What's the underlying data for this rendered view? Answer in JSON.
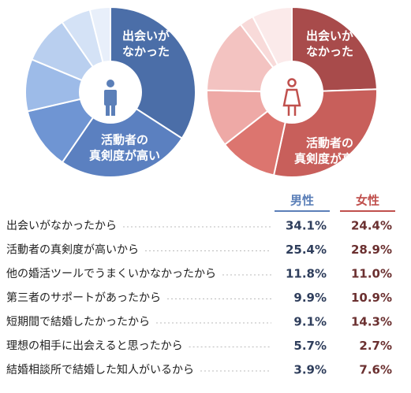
{
  "chart_data": {
    "type": "pie",
    "categories": [
      "出会いがなかったから",
      "活動者の真剣度が高いから",
      "他の婚活ツールでうまくいかなかったから",
      "第三者のサポートがあったから",
      "短期間で結婚したかったから",
      "理想の相手に出会えると思ったから",
      "結婚相談所で結婚した知人がいるから"
    ],
    "series": [
      {
        "name": "男性",
        "color": "#5b7fb8",
        "text_color": "#2f3e5c",
        "colors": [
          "#4b6ea8",
          "#5b80c0",
          "#6f95d3",
          "#9dbbe8",
          "#b9cfef",
          "#d4e2f6",
          "#e8effa"
        ],
        "values": [
          34.1,
          25.4,
          11.8,
          9.9,
          9.1,
          5.7,
          3.9
        ],
        "value_labels": [
          "34.1%",
          "25.4%",
          "11.8%",
          "9.9%",
          "9.1%",
          "5.7%",
          "3.9%"
        ],
        "annotations": [
          [
            "出会いが",
            "なかった"
          ],
          [
            "活動者の",
            "真剣度が高い"
          ]
        ]
      },
      {
        "name": "女性",
        "color": "#c0504d",
        "text_color": "#6b3030",
        "colors": [
          "#a84b4b",
          "#c85f5b",
          "#dc756f",
          "#eea9a6",
          "#f3c3c1",
          "#f8dad9",
          "#fbeaea"
        ],
        "values": [
          24.4,
          28.9,
          11.0,
          10.9,
          14.3,
          2.7,
          7.6
        ],
        "value_labels": [
          "24.4%",
          "28.9%",
          "11.0%",
          "10.9%",
          "14.3%",
          "2.7%",
          "7.6%"
        ],
        "annotations": [
          [
            "出会いが",
            "なかった"
          ],
          [
            "活動者の",
            "真剣度が高い"
          ]
        ]
      }
    ]
  }
}
